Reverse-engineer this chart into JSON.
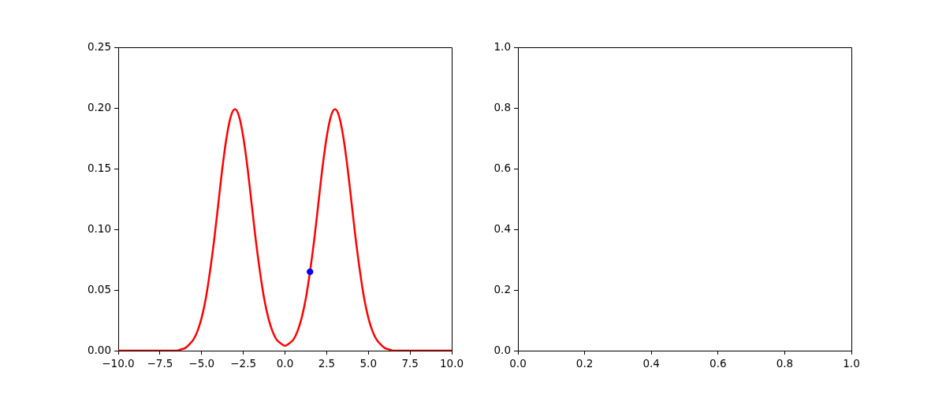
{
  "chart_data": [
    {
      "type": "line",
      "x": [
        -10,
        -9,
        -8,
        -7,
        -6.75,
        -6.5,
        -6.25,
        -6,
        -5.75,
        -5.5,
        -5.25,
        -5,
        -4.75,
        -4.5,
        -4.25,
        -4,
        -3.75,
        -3.5,
        -3.25,
        -3,
        -2.75,
        -2.5,
        -2.25,
        -2,
        -1.75,
        -1.5,
        -1.25,
        -1,
        -0.75,
        -0.5,
        -0.25,
        0,
        0.25,
        0.5,
        0.75,
        1,
        1.25,
        1.5,
        1.75,
        2,
        2.25,
        2.5,
        2.75,
        3,
        3.25,
        3.5,
        3.75,
        4,
        4.25,
        4.5,
        4.75,
        5,
        5.25,
        5.5,
        5.75,
        6,
        6.25,
        6.5,
        6.75,
        7,
        8,
        9,
        10
      ],
      "series": [
        {
          "color": "#ff0000",
          "marker": "none",
          "values": [
            0,
            0,
            0,
            0,
            0,
            0,
            0.001,
            0.002,
            0.005,
            0.009,
            0.016,
            0.027,
            0.043,
            0.065,
            0.091,
            0.121,
            0.151,
            0.176,
            0.193,
            0.199,
            0.193,
            0.176,
            0.151,
            0.121,
            0.091,
            0.065,
            0.043,
            0.027,
            0.016,
            0.009,
            0.006,
            0.004,
            0.006,
            0.009,
            0.016,
            0.027,
            0.043,
            0.065,
            0.091,
            0.121,
            0.151,
            0.176,
            0.193,
            0.199,
            0.193,
            0.176,
            0.151,
            0.121,
            0.091,
            0.065,
            0.043,
            0.027,
            0.016,
            0.009,
            0.005,
            0.002,
            0.001,
            0,
            0,
            0,
            0,
            0,
            0
          ]
        },
        {
          "type": "scatter",
          "color": "#0000ff",
          "marker": "circle",
          "x": [
            1.5
          ],
          "values": [
            0.065
          ]
        }
      ],
      "xlim": [
        -10,
        10
      ],
      "ylim": [
        0,
        0.25
      ],
      "xticks": [
        {
          "value": -10,
          "label": "−10.0"
        },
        {
          "value": -7.5,
          "label": "−7.5"
        },
        {
          "value": -5,
          "label": "−5.0"
        },
        {
          "value": -2.5,
          "label": "−2.5"
        },
        {
          "value": 0,
          "label": "0.0"
        },
        2.5,
        {
          "value": 5,
          "label": "5.0"
        },
        7.5,
        {
          "value": 10,
          "label": "10.0"
        }
      ],
      "yticks": [
        {
          "value": 0,
          "label": "0.00"
        },
        0.05,
        {
          "value": 0.1,
          "label": "0.10"
        },
        0.15,
        {
          "value": 0.2,
          "label": "0.20"
        },
        0.25
      ]
    },
    {
      "type": "line",
      "xlim": [
        0,
        1
      ],
      "ylim": [
        0,
        1
      ],
      "xticks": [
        {
          "value": 0,
          "label": "0.0"
        },
        0.2,
        0.4,
        0.6,
        0.8,
        {
          "value": 1,
          "label": "1.0"
        }
      ],
      "yticks": [
        {
          "value": 0,
          "label": "0.0"
        },
        0.2,
        0.4,
        0.6,
        0.8,
        {
          "value": 1,
          "label": "1.0"
        }
      ]
    }
  ]
}
